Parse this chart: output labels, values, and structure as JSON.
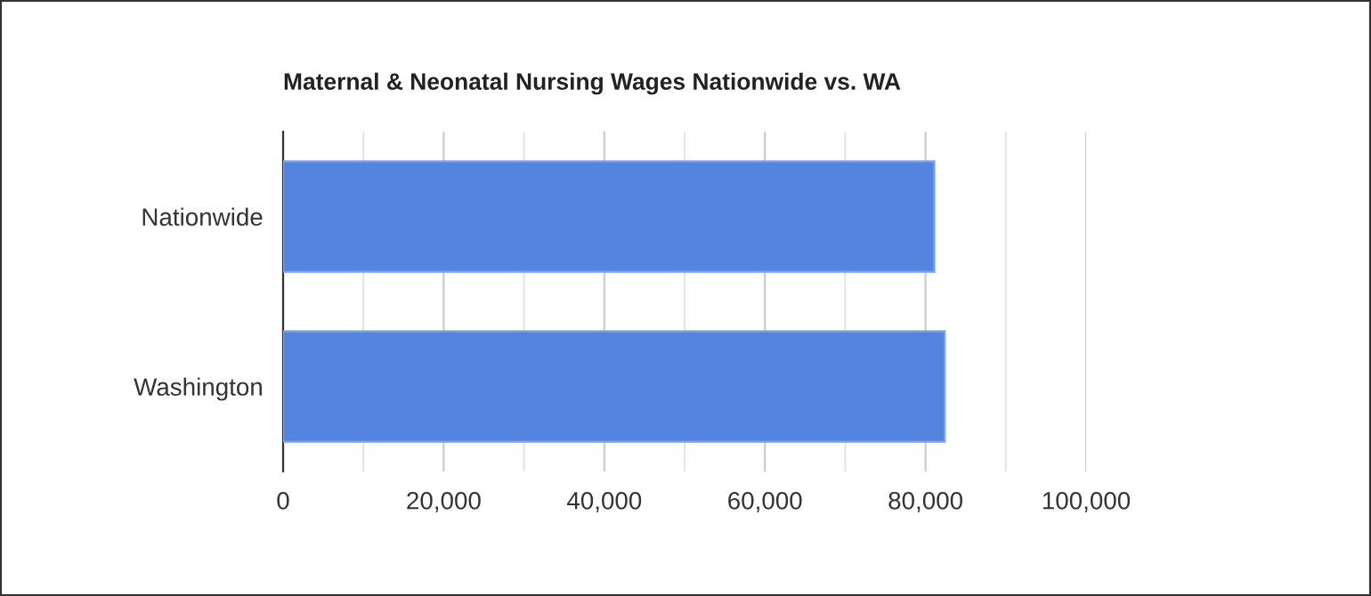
{
  "chart_data": {
    "type": "bar",
    "orientation": "horizontal",
    "title": "Maternal & Neonatal Nursing Wages Nationwide vs. WA",
    "categories": [
      "Nationwide",
      "Washington"
    ],
    "series": [
      {
        "color": "#5284e0",
        "values": [
          81100,
          82400
        ]
      }
    ],
    "xlim": [
      0,
      100000
    ],
    "xticks": [
      {
        "value": 0,
        "label": "0"
      },
      {
        "value": 10000,
        "label": null
      },
      {
        "value": 20000,
        "label": "20,000"
      },
      {
        "value": 30000,
        "label": null
      },
      {
        "value": 40000,
        "label": "40,000"
      },
      {
        "value": 50000,
        "label": null
      },
      {
        "value": 60000,
        "label": "60,000"
      },
      {
        "value": 70000,
        "label": null
      },
      {
        "value": 80000,
        "label": "80,000"
      },
      {
        "value": 90000,
        "label": null
      },
      {
        "value": 100000,
        "label": "100,000"
      }
    ],
    "grid": "x",
    "legend": false
  }
}
